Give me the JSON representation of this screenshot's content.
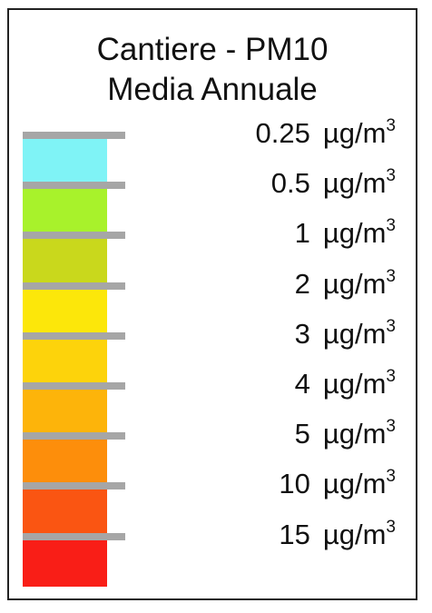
{
  "legend": {
    "title_line1": "Cantiere - PM10",
    "title_line2": "Media Annuale",
    "unit": "µg/m",
    "unit_exponent": "3",
    "breaks": [
      {
        "value": "0.25"
      },
      {
        "value": "0.5"
      },
      {
        "value": "1"
      },
      {
        "value": "2"
      },
      {
        "value": "3"
      },
      {
        "value": "4"
      },
      {
        "value": "5"
      },
      {
        "value": "10"
      },
      {
        "value": "15"
      }
    ],
    "classes": [
      {
        "color": "#7ff3f6"
      },
      {
        "color": "#a8f22b"
      },
      {
        "color": "#c9d81c"
      },
      {
        "color": "#fce70a"
      },
      {
        "color": "#fdd30b"
      },
      {
        "color": "#fdb40a"
      },
      {
        "color": "#fd8e0b"
      },
      {
        "color": "#fa5512"
      },
      {
        "color": "#f91e17"
      }
    ]
  }
}
